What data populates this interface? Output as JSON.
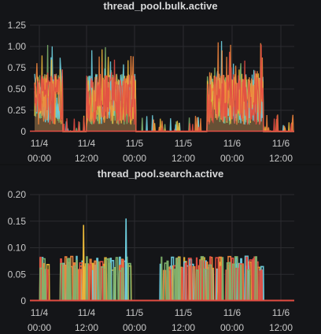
{
  "chart_data": [
    {
      "type": "line",
      "title": "thread_pool.bulk.active",
      "ylim": [
        0,
        1.25
      ],
      "y_ticks": [
        "1.25",
        "1.00",
        "0.75",
        "0.50",
        "0.25",
        "0"
      ],
      "x_ticks": [
        {
          "date": "11/4",
          "time": "00:00"
        },
        {
          "date": "11/4",
          "time": "12:00"
        },
        {
          "date": "11/5",
          "time": "00:00"
        },
        {
          "date": "11/5",
          "time": "12:00"
        },
        {
          "date": "11/6",
          "time": "00:00"
        },
        {
          "date": "11/6",
          "time": "12:00"
        }
      ],
      "grid": true,
      "legend": "none",
      "series_colors": [
        "#7eb26d",
        "#6ed0e0",
        "#eab839",
        "#ef843c",
        "#e24d42"
      ],
      "fill_color": "#705638",
      "active_spans_days": [
        [
          -0.05,
          0.25
        ],
        [
          0.5,
          1.02
        ],
        [
          1.78,
          2.37
        ],
        [
          2.75,
          3.05
        ]
      ],
      "peak": 1.2
    },
    {
      "type": "line",
      "title": "thread_pool.search.active",
      "ylim": [
        0,
        0.2
      ],
      "y_ticks": [
        "0.20",
        "0.15",
        "0.10",
        "0.05",
        "0"
      ],
      "x_ticks": [
        {
          "date": "11/4",
          "time": "00:00"
        },
        {
          "date": "11/4",
          "time": "12:00"
        },
        {
          "date": "11/5",
          "time": "00:00"
        },
        {
          "date": "11/5",
          "time": "12:00"
        },
        {
          "date": "11/6",
          "time": "00:00"
        },
        {
          "date": "11/6",
          "time": "12:00"
        }
      ],
      "grid": true,
      "legend": "none",
      "series_colors": [
        "#eab839",
        "#6ed0e0",
        "#ef843c",
        "#e24d42",
        "#7eb26d"
      ],
      "baseline_color": "#e24d42",
      "peaks": [
        0.143,
        0.155
      ],
      "typical_spike": 0.08
    }
  ]
}
